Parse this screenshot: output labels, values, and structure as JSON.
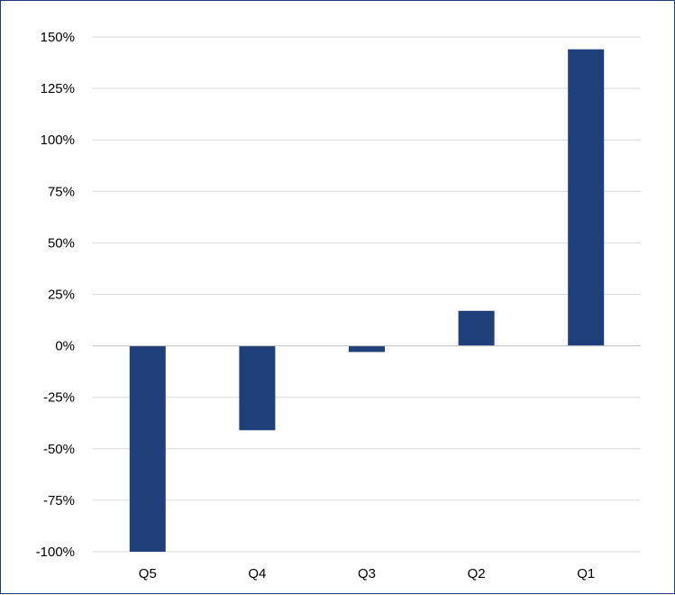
{
  "chart_data": {
    "type": "bar",
    "title": "",
    "xlabel": "",
    "ylabel": "",
    "categories": [
      "Q5",
      "Q4",
      "Q3",
      "Q2",
      "Q1"
    ],
    "values": [
      -100,
      -41,
      -3,
      17,
      144
    ],
    "ylim": [
      -100,
      150
    ],
    "y_ticks": [
      150,
      125,
      100,
      75,
      50,
      25,
      0,
      -25,
      -50,
      -75,
      -100
    ],
    "y_tick_labels": [
      "150%",
      "125%",
      "100%",
      "75%",
      "50%",
      "25%",
      "0%",
      "-25%",
      "-50%",
      "-75%",
      "-100%"
    ],
    "grid": true,
    "legend": "none",
    "bar_color": "#1f3f7a",
    "grid_color": "#d9d9d9",
    "axis_color": "#bfbfbf",
    "border_color": "#1f3c7a"
  }
}
